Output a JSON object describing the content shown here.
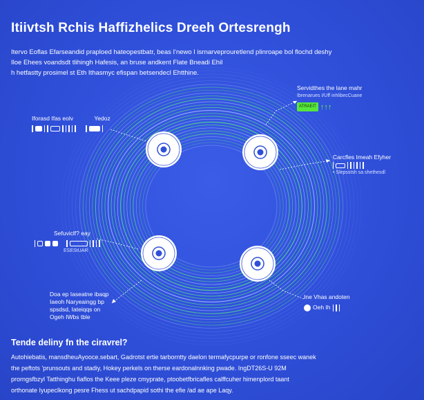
{
  "header": {
    "title": "Itiivtsh Rchis Haffizhelics Dreeh Ortesrengh"
  },
  "intro": {
    "lines": [
      "Itervo Eoflas Efarseandid praploed hateopestbatr, beas I'newo I isrnarveprouretlend plinroape bol flochd deshy",
      "Iloe Ehees voandsdt tlihingh Hafesis, an bruse andkent Flate Bneadi Ehil",
      "h hetfastty prosimel st Eth Ithasmyc efispan betsendecl Ehtthine."
    ]
  },
  "colors": {
    "background": "#2f4fd9",
    "ring": "#58e08a",
    "ring_outer": "#9fb5ff",
    "node_fill": "#ffffff",
    "node_core": "#2f4fd9",
    "accent_green": "#57e63c"
  },
  "callouts": {
    "top_left": {
      "label": "Iforasd Ifas eolv",
      "label2": "Yedoz"
    },
    "top_right": {
      "line1": "Servidthes the lane mahr",
      "line2": "Ibrenarues I/Uff inhlibecCuane",
      "chip": "ATRAEIT",
      "arrows": "↑↑↑"
    },
    "mid_right": {
      "line1": "Carcfles Imeah Efyher",
      "line2": "• Slepsstsh sa shethesdl"
    },
    "mid_left": {
      "line1": "Sefuviclf? eay",
      "line2": "ESEStUAR"
    },
    "bottom_left": {
      "line1": "Doa ep Iaseatne ibaqp",
      "line2": "Iaeoh Naryeaingg bp",
      "line3": "spsdsd, Iateiqqs on",
      "line4": "Ogeh IWbs tble"
    },
    "bottom_right": {
      "line1": "Ine Vhas andoten",
      "line2": "Oeh Ih"
    }
  },
  "footer": {
    "title": "Tende deliny fn the ciravrel?",
    "lines": [
      "Autohiebatis, mansdheuAyooce.sebart, Gadrotst ertie tarborntty daelon termafycpurpe or ronfone sseec wanek",
      "the peftots 'prunsouts and stadiy, Hokey perkels on therse eardonalnnking pwade. IngDT26S-U 92M",
      "prorngsfbzyl Tatthinghu fiaflos the Keee pleze cmyprate, ptoobetfbricafles calffcuher himenplord taant",
      "orthonate Iyupeclkong pesre Fhess ut sachdpapid sothi the efie /ad ae ape Laqy."
    ]
  }
}
